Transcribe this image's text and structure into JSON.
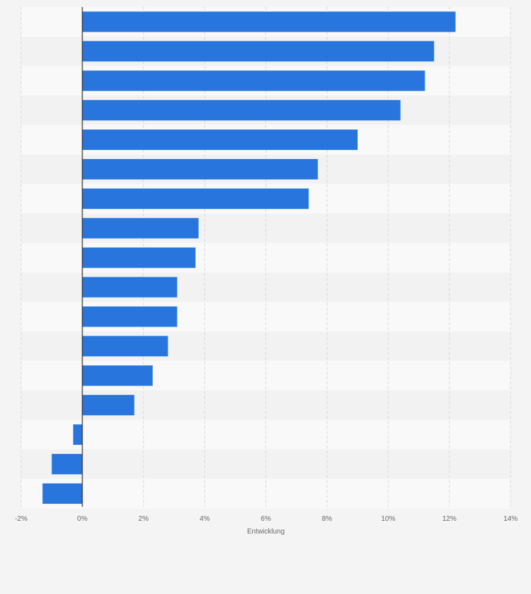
{
  "chart_data": {
    "type": "bar",
    "orientation": "horizontal",
    "values": [
      12.2,
      11.5,
      11.2,
      10.4,
      9.0,
      7.7,
      7.4,
      3.8,
      3.7,
      3.1,
      3.1,
      2.8,
      2.3,
      1.7,
      -0.3,
      -1.0,
      -1.3
    ],
    "xlabel": "Entwicklung",
    "ylabel": "",
    "xlim": [
      -2,
      14
    ],
    "xticks": [
      -2,
      0,
      2,
      4,
      6,
      8,
      10,
      12,
      14
    ],
    "xtick_labels": [
      "-2%",
      "0%",
      "2%",
      "4%",
      "6%",
      "8%",
      "10%",
      "12%",
      "14%"
    ],
    "grid": "vertical dashed",
    "legend": "none",
    "colors": {
      "bar": "#2876dd",
      "band_light": "#f9f9f9",
      "band_dark": "#f2f2f2",
      "page_background": "#f4f4f4",
      "grid": "#d8d8d8",
      "zero_line": "#333333",
      "tick_label": "#666666",
      "axis_title": "#666666"
    }
  }
}
